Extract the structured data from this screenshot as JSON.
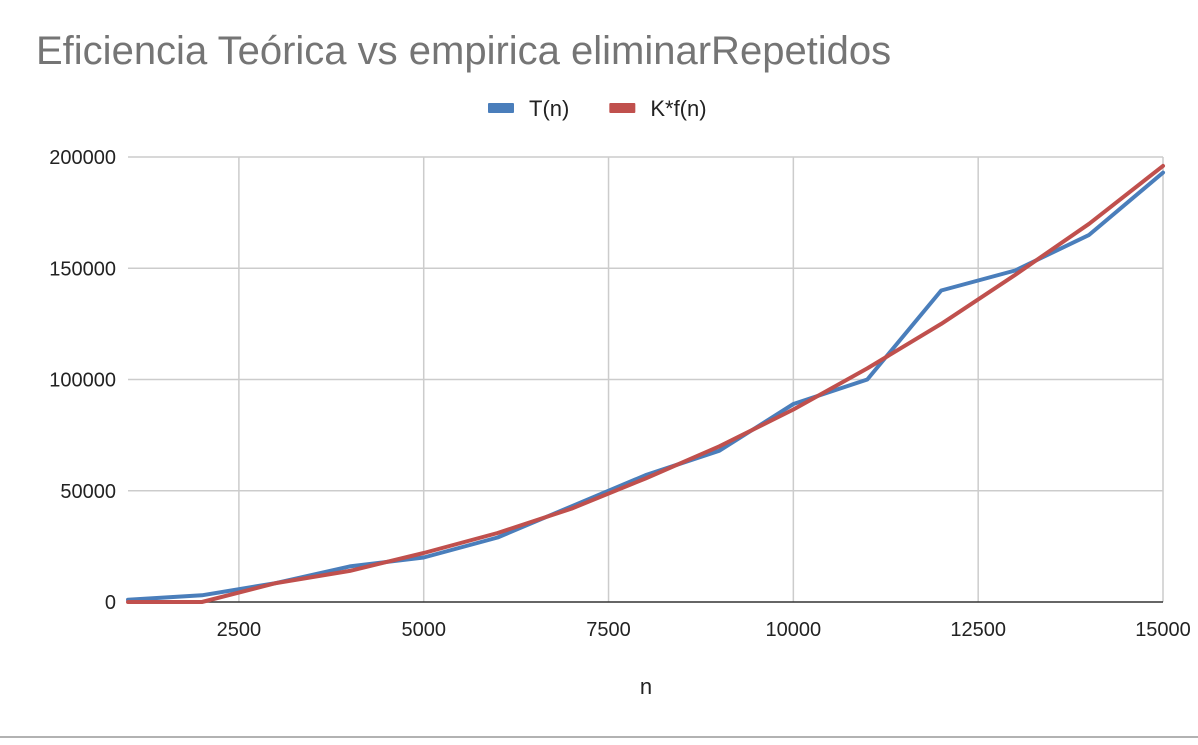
{
  "chart_data": {
    "type": "line",
    "title": "Eficiencia Teórica vs empirica eliminarRepetidos",
    "xlabel": "n",
    "ylabel": "",
    "xlim": [
      1000,
      15000
    ],
    "ylim": [
      0,
      200000
    ],
    "x_ticks": [
      2500,
      5000,
      7500,
      10000,
      12500,
      15000
    ],
    "y_ticks": [
      0,
      50000,
      100000,
      150000,
      200000
    ],
    "grid": true,
    "legend_position": "top-center",
    "x": [
      1000,
      2000,
      3000,
      4000,
      5000,
      6000,
      7000,
      8000,
      9000,
      10000,
      11000,
      12000,
      13000,
      14000,
      15000
    ],
    "series": [
      {
        "name": "T(n)",
        "color": "#4a7ebb",
        "values": [
          1000,
          3000,
          8500,
          16000,
          20000,
          29000,
          43000,
          57000,
          68000,
          89000,
          100000,
          140000,
          149000,
          165000,
          193000
        ]
      },
      {
        "name": "K*f(n)",
        "color": "#c0504d",
        "values": [
          0,
          0,
          8500,
          14000,
          22000,
          31000,
          42000,
          55500,
          70000,
          86500,
          105000,
          125000,
          147000,
          170000,
          196000
        ]
      }
    ]
  }
}
